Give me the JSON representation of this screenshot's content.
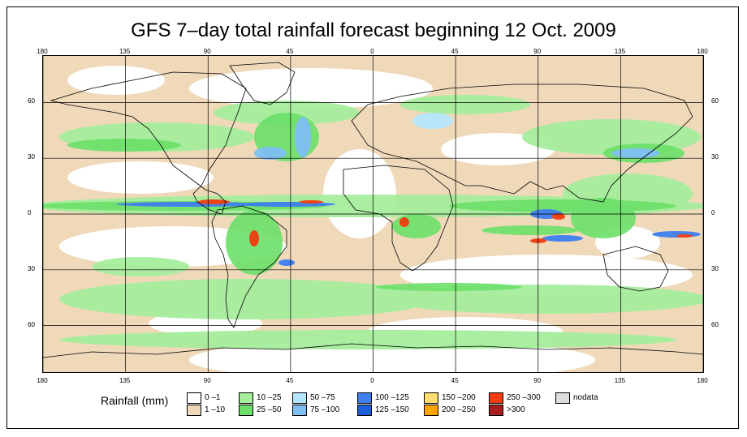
{
  "title": "GFS 7–day total rainfall forecast beginning 12 Oct. 2009",
  "axes": {
    "top_lon_labels": [
      "180",
      "135",
      "90",
      "45",
      "0",
      "45",
      "90",
      "135",
      "180"
    ],
    "bottom_lon_labels": [
      "180",
      "135",
      "90",
      "45",
      "0",
      "45",
      "90",
      "135",
      "180"
    ],
    "left_lat_labels": [
      "60",
      "30",
      "0",
      "30",
      "60"
    ],
    "right_lat_labels": [
      "60",
      "30",
      "0",
      "30",
      "60"
    ],
    "lon_range": [
      -180,
      180
    ],
    "lat_range": [
      -85,
      85
    ]
  },
  "legend": {
    "title": "Rainfall (mm)",
    "bins": [
      {
        "label": "0 –1",
        "color": "#ffffff"
      },
      {
        "label": "1 –10",
        "color": "#efd9b9"
      },
      {
        "label": "10 –25",
        "color": "#a6ee9c"
      },
      {
        "label": "25 –50",
        "color": "#6ce06a"
      },
      {
        "label": "50 –75",
        "color": "#b4e6fb"
      },
      {
        "label": "75 –100",
        "color": "#7fbff4"
      },
      {
        "label": "100 –125",
        "color": "#3f7ff0"
      },
      {
        "label": "125 –150",
        "color": "#1f5fde"
      },
      {
        "label": "150 –200",
        "color": "#ffdf6f"
      },
      {
        "label": "200 –250",
        "color": "#ffa400"
      },
      {
        "label": "250 –300",
        "color": "#f03c10"
      },
      {
        "label": ">300",
        "color": "#a81e1e"
      },
      {
        "label": "nodata",
        "color": "#dcdcdc"
      }
    ]
  },
  "colors": {
    "land_outline": "#000000",
    "grid": "#000000"
  }
}
